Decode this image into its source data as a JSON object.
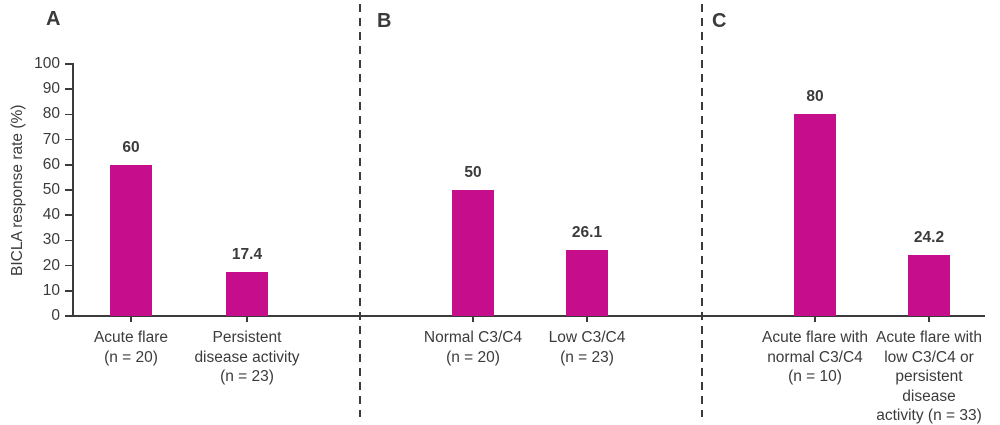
{
  "colors": {
    "bar": "#c60d8c",
    "axis": "#3b3b3b",
    "text": "#3b3b3b"
  },
  "chart_data": {
    "type": "bar",
    "title": "",
    "xlabel": "",
    "ylabel": "BICLA response rate (%)",
    "ylim": [
      0,
      100
    ],
    "yticks": [
      0,
      10,
      20,
      30,
      40,
      50,
      60,
      70,
      80,
      90,
      100
    ],
    "grid": false,
    "legend": false,
    "bar_color": "#c60d8c",
    "panels": [
      {
        "label": "A",
        "categories": [
          "Acute flare\n(n = 20)",
          "Persistent\ndisease activity\n(n = 23)"
        ],
        "values": [
          60,
          17.4
        ],
        "value_labels": [
          "60",
          "17.4"
        ]
      },
      {
        "label": "B",
        "categories": [
          "Normal C3/C4\n(n = 20)",
          "Low C3/C4\n(n = 23)"
        ],
        "values": [
          50,
          26.1
        ],
        "value_labels": [
          "50",
          "26.1"
        ]
      },
      {
        "label": "C",
        "categories": [
          "Acute flare with\nnormal C3/C4\n(n = 10)",
          "Acute flare with\nlow C3/C4 or\npersistent\ndisease\nactivity (n = 33)"
        ],
        "values": [
          80,
          24.2
        ],
        "value_labels": [
          "80",
          "24.2"
        ]
      }
    ]
  }
}
